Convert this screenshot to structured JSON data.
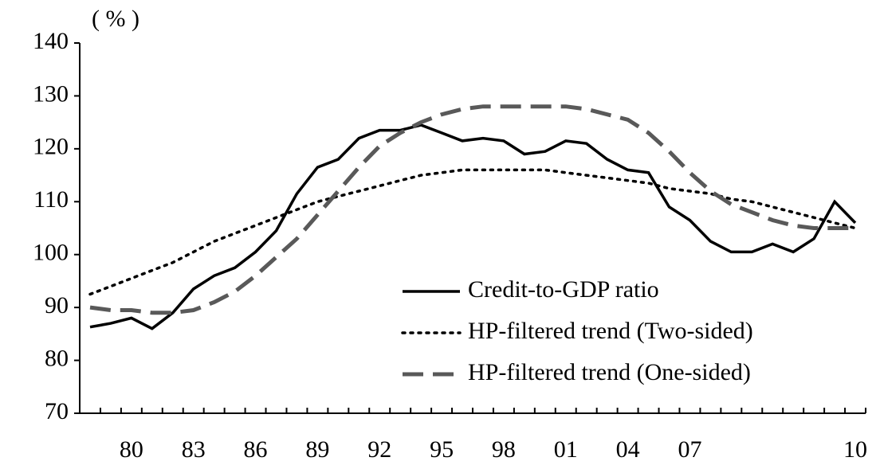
{
  "chart_data": {
    "type": "line",
    "ylabel": "( % )",
    "categories": [
      null,
      null,
      "80",
      null,
      null,
      "83",
      null,
      null,
      "86",
      null,
      null,
      "89",
      null,
      null,
      "92",
      null,
      null,
      "95",
      null,
      null,
      "98",
      null,
      null,
      "01",
      null,
      null,
      "04",
      null,
      null,
      "07",
      null,
      null,
      null,
      null,
      null,
      null,
      null,
      "10"
    ],
    "ylim": [
      70,
      140
    ],
    "yticks": [
      70,
      80,
      90,
      100,
      110,
      120,
      130,
      140
    ],
    "grid": false,
    "legend": "lower right",
    "series": [
      {
        "name": "Credit-to-GDP ratio",
        "color": "#000000",
        "dash": "solid",
        "values": [
          86.3,
          87,
          88,
          86,
          89,
          93.5,
          96,
          97.5,
          100.5,
          104.5,
          111.5,
          116.5,
          118,
          122,
          123.5,
          123.5,
          124.5,
          123,
          121.5,
          122,
          121.5,
          119,
          119.5,
          121.5,
          121,
          118,
          116,
          115.5,
          109,
          106.5,
          102.5,
          100.5,
          100.5,
          102,
          100.5,
          103,
          110,
          106
        ]
      },
      {
        "name": "HP-filtered trend (Two-sided)",
        "color": "#000000",
        "dash": "dotted",
        "values": [
          92.5,
          94,
          95.5,
          97,
          98.5,
          100.5,
          102.5,
          104,
          105.5,
          107,
          108.5,
          110,
          111,
          112,
          113,
          114,
          115,
          115.5,
          116,
          116,
          116,
          116,
          116,
          115.5,
          115,
          114.5,
          114,
          113.5,
          112.5,
          112,
          111.5,
          110.5,
          110,
          109,
          108,
          107,
          106,
          105
        ]
      },
      {
        "name": "HP-filtered trend (One-sided)",
        "color": "#595959",
        "dash": "dashed",
        "values": [
          90,
          89.5,
          89.5,
          89,
          89,
          89.5,
          91,
          93,
          96,
          99.5,
          103,
          107.5,
          112,
          116.5,
          120.5,
          123,
          125,
          126.5,
          127.5,
          128,
          128,
          128,
          128,
          128,
          127.5,
          126.5,
          125.5,
          123,
          119.5,
          115.5,
          112,
          109.5,
          108,
          106.5,
          105.5,
          105,
          105,
          105
        ]
      }
    ]
  }
}
